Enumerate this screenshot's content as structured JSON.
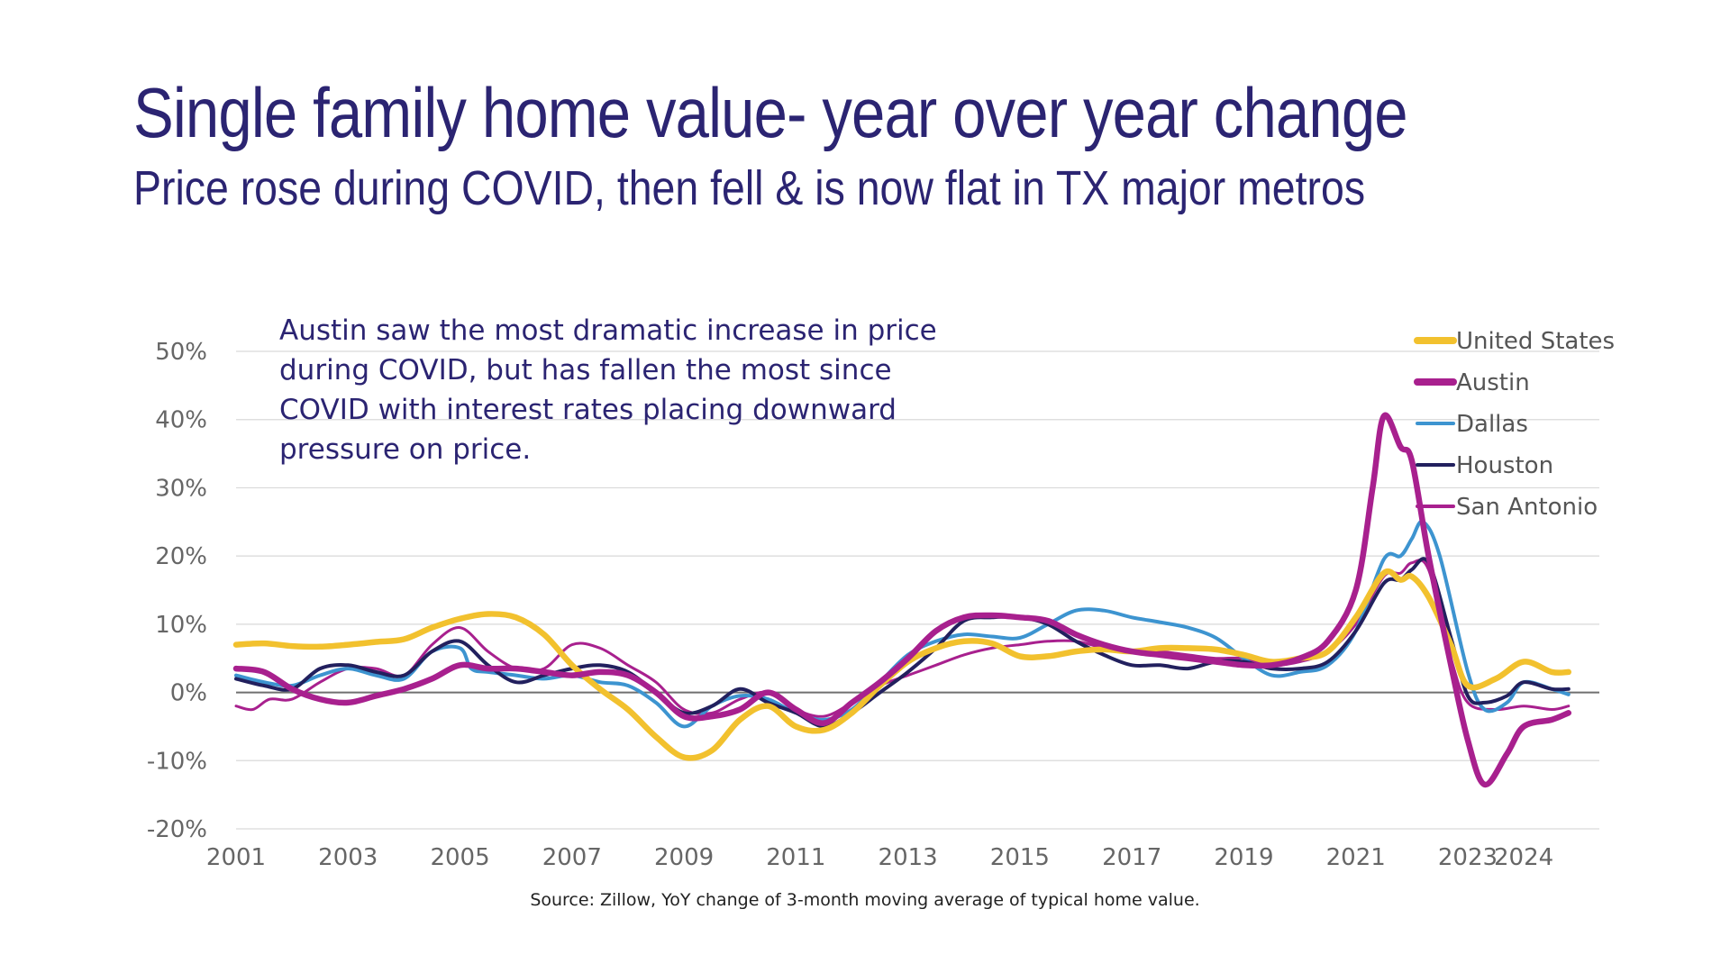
{
  "header": {
    "title": "Single family home value- year over year change",
    "subtitle": "Price rose during COVID, then fell & is now flat in TX major metros"
  },
  "annotation": "Austin saw the most dramatic increase in price during COVID, but has fallen the most since COVID with interest rates placing downward pressure on price.",
  "source": "Source: Zillow, YoY change of 3-month moving average of typical home value.",
  "chart_data": {
    "type": "line",
    "title": "Single family home value- year over year change",
    "xlabel": "",
    "ylabel": "",
    "xlim": [
      2001,
      2025.3
    ],
    "ylim": [
      -20,
      50
    ],
    "y_ticks": [
      50,
      40,
      30,
      20,
      10,
      0,
      -10,
      -20
    ],
    "y_tick_labels": [
      "50%",
      "40%",
      "30%",
      "20%",
      "10%",
      "0%",
      "-10%",
      "-20%"
    ],
    "x_ticks": [
      2001,
      2003,
      2005,
      2007,
      2009,
      2011,
      2013,
      2015,
      2017,
      2019,
      2021,
      2023,
      2024
    ],
    "x_tick_labels": [
      "2001",
      "2003",
      "2005",
      "2007",
      "2009",
      "2011",
      "2013",
      "2015",
      "2017",
      "2019",
      "2021",
      "2023",
      "2024"
    ],
    "legend_position": "top-right",
    "series": [
      {
        "name": "United States",
        "color": "#f2c12e",
        "width": "thick",
        "points": [
          [
            2001,
            7
          ],
          [
            2001.5,
            7.2
          ],
          [
            2002,
            6.8
          ],
          [
            2002.5,
            6.7
          ],
          [
            2003,
            7
          ],
          [
            2003.5,
            7.4
          ],
          [
            2004,
            7.8
          ],
          [
            2004.5,
            9.5
          ],
          [
            2005,
            10.8
          ],
          [
            2005.5,
            11.5
          ],
          [
            2006,
            11
          ],
          [
            2006.5,
            8.5
          ],
          [
            2007,
            4
          ],
          [
            2007.5,
            0.5
          ],
          [
            2008,
            -2.5
          ],
          [
            2008.5,
            -6.5
          ],
          [
            2009,
            -9.5
          ],
          [
            2009.5,
            -8.5
          ],
          [
            2010,
            -4
          ],
          [
            2010.5,
            -2
          ],
          [
            2011,
            -5
          ],
          [
            2011.5,
            -5.5
          ],
          [
            2012,
            -3
          ],
          [
            2012.5,
            1
          ],
          [
            2013,
            4.5
          ],
          [
            2013.5,
            6.5
          ],
          [
            2014,
            7.5
          ],
          [
            2014.5,
            7.2
          ],
          [
            2015,
            5.3
          ],
          [
            2015.5,
            5.3
          ],
          [
            2016,
            6
          ],
          [
            2016.5,
            6.3
          ],
          [
            2017,
            6
          ],
          [
            2017.5,
            6.5
          ],
          [
            2018,
            6.5
          ],
          [
            2018.5,
            6.3
          ],
          [
            2019,
            5.5
          ],
          [
            2019.5,
            4.5
          ],
          [
            2020,
            5
          ],
          [
            2020.5,
            6
          ],
          [
            2021,
            11
          ],
          [
            2021.5,
            17.5
          ],
          [
            2021.8,
            16.5
          ],
          [
            2022,
            17
          ],
          [
            2022.3,
            14
          ],
          [
            2022.7,
            7
          ],
          [
            2023,
            1
          ],
          [
            2023.5,
            2
          ],
          [
            2024,
            4.5
          ],
          [
            2024.5,
            3
          ],
          [
            2024.8,
            3
          ]
        ]
      },
      {
        "name": "Austin",
        "color": "#a8208e",
        "width": "thick",
        "points": [
          [
            2001,
            3.5
          ],
          [
            2001.5,
            3
          ],
          [
            2002,
            0.5
          ],
          [
            2002.5,
            -1
          ],
          [
            2003,
            -1.5
          ],
          [
            2003.5,
            -0.5
          ],
          [
            2004,
            0.5
          ],
          [
            2004.5,
            2
          ],
          [
            2005,
            4
          ],
          [
            2005.5,
            3.5
          ],
          [
            2006,
            3.5
          ],
          [
            2006.5,
            3
          ],
          [
            2007,
            2.5
          ],
          [
            2007.5,
            3
          ],
          [
            2008,
            2.5
          ],
          [
            2008.5,
            0
          ],
          [
            2009,
            -3.5
          ],
          [
            2009.5,
            -3.5
          ],
          [
            2010,
            -2.5
          ],
          [
            2010.5,
            0
          ],
          [
            2011,
            -2.5
          ],
          [
            2011.5,
            -4.5
          ],
          [
            2012,
            -1.5
          ],
          [
            2012.5,
            1.5
          ],
          [
            2013,
            5
          ],
          [
            2013.5,
            9
          ],
          [
            2014,
            11
          ],
          [
            2014.5,
            11.3
          ],
          [
            2015,
            11
          ],
          [
            2015.5,
            10.5
          ],
          [
            2016,
            8.5
          ],
          [
            2016.5,
            7
          ],
          [
            2017,
            6
          ],
          [
            2017.5,
            5.5
          ],
          [
            2018,
            5
          ],
          [
            2018.5,
            4.5
          ],
          [
            2019,
            4
          ],
          [
            2019.5,
            4
          ],
          [
            2020,
            5
          ],
          [
            2020.5,
            7.5
          ],
          [
            2021,
            15
          ],
          [
            2021.3,
            30
          ],
          [
            2021.5,
            40.5
          ],
          [
            2021.8,
            36
          ],
          [
            2022,
            34
          ],
          [
            2022.3,
            20
          ],
          [
            2022.7,
            4
          ],
          [
            2023,
            -7
          ],
          [
            2023.3,
            -13.5
          ],
          [
            2023.7,
            -9
          ],
          [
            2024,
            -5
          ],
          [
            2024.5,
            -4
          ],
          [
            2024.8,
            -3
          ]
        ]
      },
      {
        "name": "Dallas",
        "color": "#3d94d0",
        "width": "normal",
        "points": [
          [
            2001,
            2.5
          ],
          [
            2001.5,
            1.5
          ],
          [
            2002,
            1
          ],
          [
            2002.5,
            2.5
          ],
          [
            2003,
            3.5
          ],
          [
            2003.5,
            2.5
          ],
          [
            2004,
            2
          ],
          [
            2004.5,
            6
          ],
          [
            2005,
            6.5
          ],
          [
            2005.2,
            3.5
          ],
          [
            2005.5,
            3
          ],
          [
            2006,
            2.5
          ],
          [
            2006.5,
            2
          ],
          [
            2007,
            2.5
          ],
          [
            2007.5,
            1.5
          ],
          [
            2008,
            1
          ],
          [
            2008.5,
            -1.5
          ],
          [
            2009,
            -5
          ],
          [
            2009.5,
            -2
          ],
          [
            2010,
            -0.5
          ],
          [
            2010.5,
            -1
          ],
          [
            2011,
            -3
          ],
          [
            2011.5,
            -4
          ],
          [
            2012,
            -2.5
          ],
          [
            2012.5,
            1.5
          ],
          [
            2013,
            5.5
          ],
          [
            2013.5,
            7.5
          ],
          [
            2014,
            8.5
          ],
          [
            2014.5,
            8.2
          ],
          [
            2015,
            8
          ],
          [
            2015.5,
            10
          ],
          [
            2016,
            12
          ],
          [
            2016.5,
            12
          ],
          [
            2017,
            11
          ],
          [
            2017.5,
            10.3
          ],
          [
            2018,
            9.5
          ],
          [
            2018.5,
            8
          ],
          [
            2019,
            5
          ],
          [
            2019.5,
            2.5
          ],
          [
            2020,
            3
          ],
          [
            2020.5,
            4
          ],
          [
            2021,
            9
          ],
          [
            2021.5,
            19.5
          ],
          [
            2021.8,
            20
          ],
          [
            2022,
            22.5
          ],
          [
            2022.2,
            25
          ],
          [
            2022.5,
            20
          ],
          [
            2023,
            3
          ],
          [
            2023.3,
            -2.5
          ],
          [
            2023.7,
            -1.5
          ],
          [
            2024,
            1.5
          ],
          [
            2024.5,
            0.5
          ],
          [
            2024.8,
            -0.3
          ]
        ]
      },
      {
        "name": "Houston",
        "color": "#22205e",
        "width": "normal",
        "points": [
          [
            2001,
            2
          ],
          [
            2001.5,
            1
          ],
          [
            2002,
            0.5
          ],
          [
            2002.5,
            3.5
          ],
          [
            2003,
            4
          ],
          [
            2003.5,
            3
          ],
          [
            2004,
            2.5
          ],
          [
            2004.5,
            6
          ],
          [
            2005,
            7.5
          ],
          [
            2005.5,
            4
          ],
          [
            2006,
            1.5
          ],
          [
            2006.5,
            2.5
          ],
          [
            2007,
            3.5
          ],
          [
            2007.5,
            4
          ],
          [
            2008,
            3
          ],
          [
            2008.5,
            0
          ],
          [
            2009,
            -3
          ],
          [
            2009.5,
            -2
          ],
          [
            2010,
            0.5
          ],
          [
            2010.5,
            -1.5
          ],
          [
            2011,
            -3
          ],
          [
            2011.5,
            -5
          ],
          [
            2012,
            -3
          ],
          [
            2012.5,
            0
          ],
          [
            2013,
            3
          ],
          [
            2013.5,
            6.5
          ],
          [
            2014,
            10.5
          ],
          [
            2014.5,
            11
          ],
          [
            2015,
            11
          ],
          [
            2015.5,
            10
          ],
          [
            2016,
            7.5
          ],
          [
            2016.5,
            5.5
          ],
          [
            2017,
            4
          ],
          [
            2017.5,
            4
          ],
          [
            2018,
            3.5
          ],
          [
            2018.5,
            4.5
          ],
          [
            2019,
            4.5
          ],
          [
            2019.5,
            3.5
          ],
          [
            2020,
            3.5
          ],
          [
            2020.5,
            4.5
          ],
          [
            2021,
            9
          ],
          [
            2021.5,
            16
          ],
          [
            2021.8,
            16.5
          ],
          [
            2022,
            18
          ],
          [
            2022.3,
            19
          ],
          [
            2022.7,
            8
          ],
          [
            2023,
            -0.5
          ],
          [
            2023.3,
            -1.5
          ],
          [
            2023.7,
            -0.5
          ],
          [
            2024,
            1.5
          ],
          [
            2024.5,
            0.5
          ],
          [
            2024.8,
            0.5
          ]
        ]
      },
      {
        "name": "San Antonio",
        "color": "#a8208e",
        "width": "thin",
        "points": [
          [
            2001,
            -2
          ],
          [
            2001.3,
            -2.5
          ],
          [
            2001.6,
            -1
          ],
          [
            2002,
            -1
          ],
          [
            2002.5,
            1.5
          ],
          [
            2003,
            3.5
          ],
          [
            2003.5,
            3.5
          ],
          [
            2004,
            2.5
          ],
          [
            2004.5,
            7
          ],
          [
            2005,
            9.5
          ],
          [
            2005.5,
            6
          ],
          [
            2006,
            3.5
          ],
          [
            2006.5,
            3.5
          ],
          [
            2007,
            7
          ],
          [
            2007.5,
            6.5
          ],
          [
            2008,
            4
          ],
          [
            2008.5,
            1.5
          ],
          [
            2009,
            -2.5
          ],
          [
            2009.5,
            -3
          ],
          [
            2010,
            -1
          ],
          [
            2010.5,
            0
          ],
          [
            2011,
            -2.5
          ],
          [
            2011.5,
            -3.5
          ],
          [
            2012,
            -1.5
          ],
          [
            2012.5,
            1
          ],
          [
            2013,
            2.5
          ],
          [
            2013.5,
            4
          ],
          [
            2014,
            5.5
          ],
          [
            2014.5,
            6.5
          ],
          [
            2015,
            7
          ],
          [
            2015.5,
            7.5
          ],
          [
            2016,
            7.5
          ],
          [
            2016.5,
            6.5
          ],
          [
            2017,
            6
          ],
          [
            2017.5,
            6
          ],
          [
            2018,
            5.5
          ],
          [
            2018.5,
            5
          ],
          [
            2019,
            5
          ],
          [
            2019.5,
            4
          ],
          [
            2020,
            4.5
          ],
          [
            2020.5,
            6
          ],
          [
            2021,
            10
          ],
          [
            2021.5,
            17
          ],
          [
            2021.8,
            17.5
          ],
          [
            2022,
            19
          ],
          [
            2022.3,
            18
          ],
          [
            2022.7,
            5
          ],
          [
            2023,
            -1.5
          ],
          [
            2023.5,
            -2.5
          ],
          [
            2024,
            -2
          ],
          [
            2024.5,
            -2.5
          ],
          [
            2024.8,
            -2
          ]
        ]
      }
    ]
  }
}
